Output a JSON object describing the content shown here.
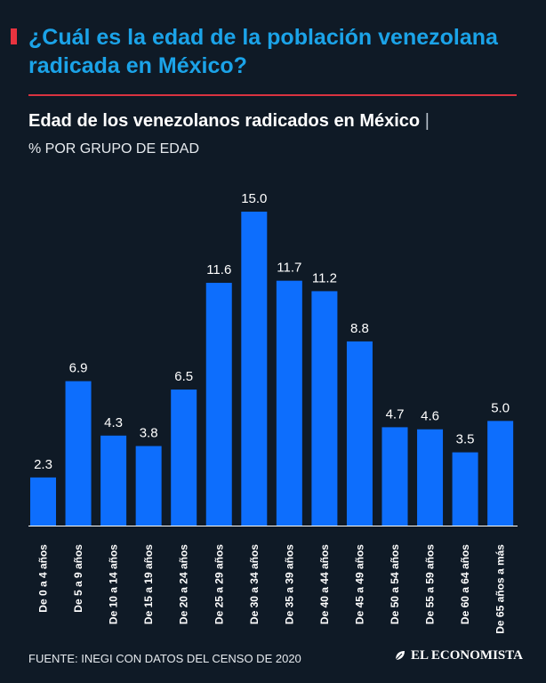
{
  "header": {
    "title": "¿Cuál es la edad de la población venezolana radicada en México?",
    "subtitle": "Edad de los venezolanos radicados en México",
    "separator": "|",
    "unit_label": "% POR GRUPO DE EDAD"
  },
  "footer": {
    "source": "FUENTE: INEGI CON DATOS DEL CENSO DE 2020",
    "brand": "EL ECONOMISTA"
  },
  "colors": {
    "background": "#0f1a26",
    "title": "#1ba3e8",
    "accent": "#e8333f",
    "bar": "#0d6efd",
    "text": "#ffffff"
  },
  "chart_data": {
    "type": "bar",
    "title": "Edad de los venezolanos radicados en México",
    "ylabel": "% POR GRUPO DE EDAD",
    "xlabel": "",
    "ylim": [
      0,
      15
    ],
    "grid": false,
    "categories": [
      "De 0 a 4 años",
      "De 5 a 9 años",
      "De 10 a 14 años",
      "De 15 a 19 años",
      "De 20 a 24 años",
      "De 25 a 29 años",
      "De 30 a 34 años",
      "De 35 a 39 años",
      "De 40 a 44 años",
      "De 45 a 49 años",
      "De 50 a 54 años",
      "De 55 a 59 años",
      "De 60 a 64 años",
      "De 65 años a más"
    ],
    "values": [
      2.3,
      6.9,
      4.3,
      3.8,
      6.5,
      11.6,
      15.0,
      11.7,
      11.2,
      8.8,
      4.7,
      4.6,
      3.5,
      5.0
    ],
    "value_labels": [
      "2.3",
      "6.9",
      "4.3",
      "3.8",
      "6.5",
      "11.6",
      "15.0",
      "11.7",
      "11.2",
      "8.8",
      "4.7",
      "4.6",
      "3.5",
      "5.0"
    ]
  }
}
